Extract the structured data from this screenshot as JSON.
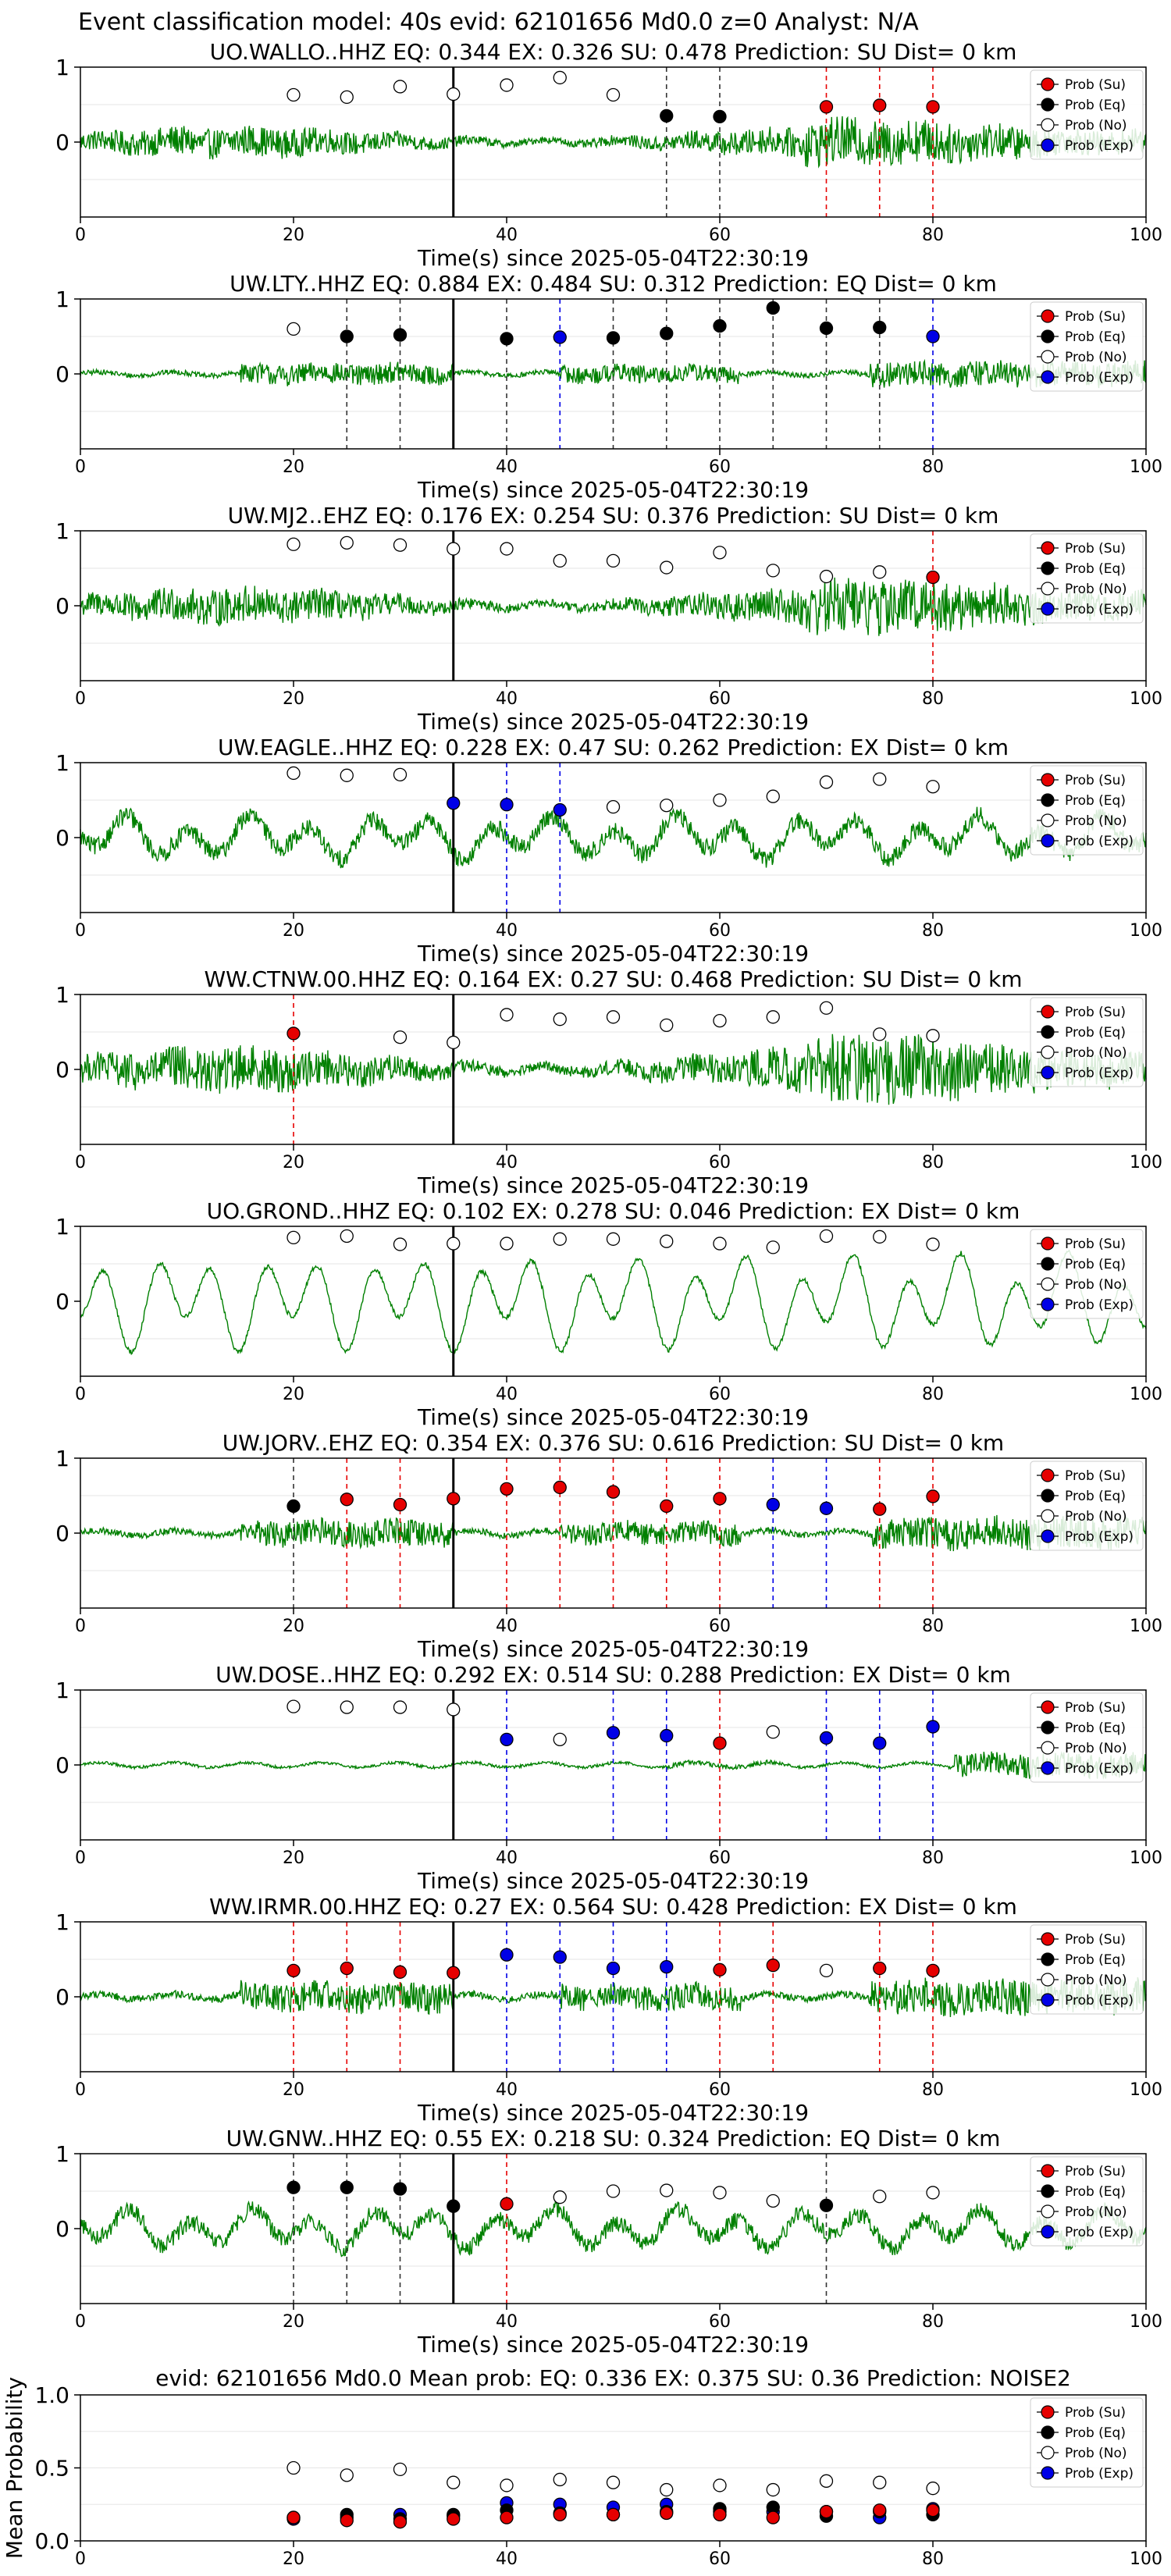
{
  "figure": {
    "suptitle": "Event classification model: 40s evid: 62101656 Md0.0 z=0 Analyst: N/A",
    "xlabel": "Time(s) since 2025-05-04T22:30:19",
    "legend": [
      "Prob (Su)",
      "Prob (Eq)",
      "Prob (No)",
      "Prob (Exp)"
    ]
  },
  "colors": {
    "su": "#e60000",
    "eq": "#000000",
    "no": "#ffffff",
    "exp": "#0000e6",
    "trace": "#008000",
    "pick": "#000000"
  },
  "chart_data": [
    {
      "type": "line",
      "title": "UO.WALLO..HHZ   EQ: 0.344  EX: 0.326  SU: 0.478   Prediction: SU    Dist= 0 km",
      "x_range": [
        0,
        100
      ],
      "y_ticks": [
        "1",
        "0"
      ],
      "x_ticks": [
        "0",
        "20",
        "40",
        "60",
        "80",
        "100"
      ],
      "pick_time": 35,
      "trace_style": "broadband",
      "amplitude": 0.38,
      "points": [
        [
          "no",
          20,
          0.63
        ],
        [
          "no",
          25,
          0.6
        ],
        [
          "no",
          30,
          0.74
        ],
        [
          "no",
          35,
          0.64
        ],
        [
          "no",
          40,
          0.76
        ],
        [
          "no",
          45,
          0.86
        ],
        [
          "no",
          50,
          0.63
        ],
        [
          "eq",
          55,
          0.35
        ],
        [
          "eq",
          60,
          0.34
        ],
        [
          "su",
          70,
          0.47
        ],
        [
          "su",
          75,
          0.49
        ],
        [
          "su",
          80,
          0.47
        ]
      ],
      "vlines": [
        [
          "eq",
          55
        ],
        [
          "eq",
          60
        ],
        [
          "su",
          70
        ],
        [
          "su",
          75
        ],
        [
          "su",
          80
        ]
      ]
    },
    {
      "type": "line",
      "title": "UW.LTY..HHZ   EQ: 0.884  EX: 0.484  SU: 0.312   Prediction: EQ    Dist= 0 km",
      "x_range": [
        0,
        100
      ],
      "y_ticks": [
        "1",
        "0"
      ],
      "x_ticks": [
        "0",
        "20",
        "40",
        "60",
        "80",
        "100"
      ],
      "pick_time": 35,
      "trace_style": "quiet-event",
      "amplitude": 0.32,
      "points": [
        [
          "no",
          20,
          0.6
        ],
        [
          "eq",
          25,
          0.5
        ],
        [
          "eq",
          30,
          0.52
        ],
        [
          "eq",
          40,
          0.47
        ],
        [
          "exp",
          45,
          0.49
        ],
        [
          "eq",
          50,
          0.48
        ],
        [
          "eq",
          55,
          0.54
        ],
        [
          "eq",
          60,
          0.64
        ],
        [
          "eq",
          65,
          0.88
        ],
        [
          "eq",
          70,
          0.61
        ],
        [
          "eq",
          75,
          0.62
        ],
        [
          "exp",
          80,
          0.5
        ]
      ],
      "vlines": [
        [
          "eq",
          25
        ],
        [
          "eq",
          30
        ],
        [
          "eq",
          40
        ],
        [
          "exp",
          45
        ],
        [
          "eq",
          50
        ],
        [
          "eq",
          55
        ],
        [
          "eq",
          60
        ],
        [
          "eq",
          65
        ],
        [
          "eq",
          70
        ],
        [
          "eq",
          75
        ],
        [
          "exp",
          80
        ]
      ]
    },
    {
      "type": "line",
      "title": "UW.MJ2..EHZ   EQ: 0.176  EX: 0.254  SU: 0.376   Prediction: SU    Dist= 0 km",
      "x_range": [
        0,
        100
      ],
      "y_ticks": [
        "1",
        "0"
      ],
      "x_ticks": [
        "0",
        "20",
        "40",
        "60",
        "80",
        "100"
      ],
      "pick_time": 35,
      "trace_style": "broadband",
      "amplitude": 0.45,
      "points": [
        [
          "no",
          20,
          0.82
        ],
        [
          "no",
          25,
          0.84
        ],
        [
          "no",
          30,
          0.81
        ],
        [
          "no",
          35,
          0.76
        ],
        [
          "no",
          40,
          0.76
        ],
        [
          "no",
          45,
          0.6
        ],
        [
          "no",
          50,
          0.6
        ],
        [
          "no",
          55,
          0.51
        ],
        [
          "no",
          60,
          0.71
        ],
        [
          "no",
          65,
          0.47
        ],
        [
          "no",
          70,
          0.39
        ],
        [
          "no",
          75,
          0.45
        ],
        [
          "su",
          80,
          0.38
        ]
      ],
      "vlines": [
        [
          "su",
          80
        ]
      ]
    },
    {
      "type": "line",
      "title": "UW.EAGLE..HHZ   EQ: 0.228  EX: 0.47  SU: 0.262   Prediction: EX    Dist= 0 km",
      "x_range": [
        0,
        100
      ],
      "y_ticks": [
        "1",
        "0"
      ],
      "x_ticks": [
        "0",
        "20",
        "40",
        "60",
        "80",
        "100"
      ],
      "pick_time": 35,
      "trace_style": "lowfreq-noisy",
      "amplitude": 0.55,
      "points": [
        [
          "no",
          20,
          0.86
        ],
        [
          "no",
          25,
          0.83
        ],
        [
          "no",
          30,
          0.84
        ],
        [
          "exp",
          35,
          0.46
        ],
        [
          "exp",
          40,
          0.44
        ],
        [
          "exp",
          45,
          0.37
        ],
        [
          "no",
          50,
          0.41
        ],
        [
          "no",
          55,
          0.43
        ],
        [
          "no",
          60,
          0.5
        ],
        [
          "no",
          65,
          0.55
        ],
        [
          "no",
          70,
          0.74
        ],
        [
          "no",
          75,
          0.78
        ],
        [
          "no",
          80,
          0.68
        ]
      ],
      "vlines": [
        [
          "exp",
          40
        ],
        [
          "exp",
          45
        ]
      ]
    },
    {
      "type": "line",
      "title": "WW.CTNW.00.HHZ   EQ: 0.164  EX: 0.27  SU: 0.468   Prediction: SU    Dist= 0 km",
      "x_range": [
        0,
        100
      ],
      "y_ticks": [
        "1",
        "0"
      ],
      "x_ticks": [
        "0",
        "20",
        "40",
        "60",
        "80",
        "100"
      ],
      "pick_time": 35,
      "trace_style": "broadband",
      "amplitude": 0.55,
      "points": [
        [
          "su",
          20,
          0.48
        ],
        [
          "no",
          30,
          0.43
        ],
        [
          "no",
          35,
          0.36
        ],
        [
          "no",
          40,
          0.73
        ],
        [
          "no",
          45,
          0.67
        ],
        [
          "no",
          50,
          0.7
        ],
        [
          "no",
          55,
          0.59
        ],
        [
          "no",
          60,
          0.65
        ],
        [
          "no",
          65,
          0.7
        ],
        [
          "no",
          70,
          0.82
        ],
        [
          "no",
          75,
          0.47
        ],
        [
          "no",
          80,
          0.45
        ]
      ],
      "vlines": [
        [
          "su",
          20
        ]
      ]
    },
    {
      "type": "line",
      "title": "UO.GROND..HHZ   EQ: 0.102  EX: 0.278  SU: 0.046   Prediction: EX    Dist= 0 km",
      "x_range": [
        0,
        100
      ],
      "y_ticks": [
        "1",
        "0"
      ],
      "x_ticks": [
        "0",
        "20",
        "40",
        "60",
        "80",
        "100"
      ],
      "pick_time": 35,
      "trace_style": "lowfreq",
      "amplitude": 0.8,
      "points": [
        [
          "no",
          20,
          0.85
        ],
        [
          "no",
          25,
          0.87
        ],
        [
          "no",
          30,
          0.76
        ],
        [
          "no",
          35,
          0.77
        ],
        [
          "no",
          40,
          0.77
        ],
        [
          "no",
          45,
          0.83
        ],
        [
          "no",
          50,
          0.83
        ],
        [
          "no",
          55,
          0.8
        ],
        [
          "no",
          60,
          0.77
        ],
        [
          "no",
          65,
          0.72
        ],
        [
          "no",
          70,
          0.87
        ],
        [
          "no",
          75,
          0.86
        ],
        [
          "no",
          80,
          0.76
        ]
      ],
      "vlines": []
    },
    {
      "type": "line",
      "title": "UW.JORV..EHZ   EQ: 0.354  EX: 0.376  SU: 0.616   Prediction: SU    Dist= 0 km",
      "x_range": [
        0,
        100
      ],
      "y_ticks": [
        "1",
        "0"
      ],
      "x_ticks": [
        "0",
        "20",
        "40",
        "60",
        "80",
        "100"
      ],
      "pick_time": 35,
      "trace_style": "quiet-event",
      "amplitude": 0.4,
      "points": [
        [
          "eq",
          20,
          0.36
        ],
        [
          "su",
          25,
          0.45
        ],
        [
          "su",
          30,
          0.38
        ],
        [
          "su",
          35,
          0.46
        ],
        [
          "su",
          40,
          0.59
        ],
        [
          "su",
          45,
          0.61
        ],
        [
          "su",
          50,
          0.55
        ],
        [
          "su",
          55,
          0.36
        ],
        [
          "su",
          60,
          0.46
        ],
        [
          "exp",
          65,
          0.38
        ],
        [
          "exp",
          70,
          0.33
        ],
        [
          "su",
          75,
          0.32
        ],
        [
          "su",
          80,
          0.49
        ]
      ],
      "vlines": [
        [
          "eq",
          20
        ],
        [
          "su",
          25
        ],
        [
          "su",
          30
        ],
        [
          "su",
          40
        ],
        [
          "su",
          45
        ],
        [
          "su",
          50
        ],
        [
          "su",
          55
        ],
        [
          "su",
          60
        ],
        [
          "exp",
          65
        ],
        [
          "exp",
          70
        ],
        [
          "su",
          75
        ],
        [
          "su",
          80
        ]
      ]
    },
    {
      "type": "line",
      "title": "UW.DOSE..HHZ   EQ: 0.292  EX: 0.514  SU: 0.288   Prediction: EX    Dist= 0 km",
      "x_range": [
        0,
        100
      ],
      "y_ticks": [
        "1",
        "0"
      ],
      "x_ticks": [
        "0",
        "20",
        "40",
        "60",
        "80",
        "100"
      ],
      "pick_time": 35,
      "trace_style": "very-quiet",
      "amplitude": 0.4,
      "points": [
        [
          "no",
          20,
          0.78
        ],
        [
          "no",
          25,
          0.77
        ],
        [
          "no",
          30,
          0.77
        ],
        [
          "no",
          35,
          0.74
        ],
        [
          "exp",
          40,
          0.34
        ],
        [
          "no",
          45,
          0.34
        ],
        [
          "exp",
          50,
          0.43
        ],
        [
          "exp",
          55,
          0.39
        ],
        [
          "su",
          60,
          0.29
        ],
        [
          "no",
          65,
          0.44
        ],
        [
          "exp",
          70,
          0.36
        ],
        [
          "exp",
          75,
          0.29
        ],
        [
          "exp",
          80,
          0.51
        ]
      ],
      "vlines": [
        [
          "exp",
          40
        ],
        [
          "exp",
          50
        ],
        [
          "exp",
          55
        ],
        [
          "su",
          60
        ],
        [
          "exp",
          70
        ],
        [
          "exp",
          75
        ],
        [
          "exp",
          80
        ]
      ]
    },
    {
      "type": "line",
      "title": "WW.IRMR.00.HHZ   EQ: 0.27  EX: 0.564  SU: 0.428   Prediction: EX    Dist= 0 km",
      "x_range": [
        0,
        100
      ],
      "y_ticks": [
        "1",
        "0"
      ],
      "x_ticks": [
        "0",
        "20",
        "40",
        "60",
        "80",
        "100"
      ],
      "pick_time": 35,
      "trace_style": "quiet-event",
      "amplitude": 0.45,
      "points": [
        [
          "su",
          20,
          0.35
        ],
        [
          "su",
          25,
          0.38
        ],
        [
          "su",
          30,
          0.33
        ],
        [
          "su",
          35,
          0.32
        ],
        [
          "exp",
          40,
          0.56
        ],
        [
          "exp",
          45,
          0.53
        ],
        [
          "exp",
          50,
          0.38
        ],
        [
          "exp",
          55,
          0.4
        ],
        [
          "su",
          60,
          0.36
        ],
        [
          "su",
          65,
          0.42
        ],
        [
          "no",
          70,
          0.35
        ],
        [
          "su",
          75,
          0.38
        ],
        [
          "su",
          80,
          0.35
        ]
      ],
      "vlines": [
        [
          "su",
          20
        ],
        [
          "su",
          25
        ],
        [
          "su",
          30
        ],
        [
          "exp",
          40
        ],
        [
          "exp",
          45
        ],
        [
          "exp",
          50
        ],
        [
          "exp",
          55
        ],
        [
          "su",
          60
        ],
        [
          "su",
          65
        ],
        [
          "su",
          75
        ],
        [
          "su",
          80
        ]
      ]
    },
    {
      "type": "line",
      "title": "UW.GNW..HHZ   EQ: 0.55  EX: 0.218  SU: 0.324   Prediction: EQ    Dist= 0 km",
      "x_range": [
        0,
        100
      ],
      "y_ticks": [
        "1",
        "0"
      ],
      "x_ticks": [
        "0",
        "20",
        "40",
        "60",
        "80",
        "100"
      ],
      "pick_time": 35,
      "trace_style": "lowfreq-noisy",
      "amplitude": 0.5,
      "points": [
        [
          "eq",
          20,
          0.55
        ],
        [
          "eq",
          25,
          0.55
        ],
        [
          "eq",
          30,
          0.53
        ],
        [
          "eq",
          35,
          0.3
        ],
        [
          "su",
          40,
          0.33
        ],
        [
          "no",
          45,
          0.42
        ],
        [
          "no",
          50,
          0.5
        ],
        [
          "no",
          55,
          0.51
        ],
        [
          "no",
          60,
          0.48
        ],
        [
          "no",
          65,
          0.37
        ],
        [
          "eq",
          70,
          0.31
        ],
        [
          "no",
          75,
          0.43
        ],
        [
          "no",
          80,
          0.48
        ]
      ],
      "vlines": [
        [
          "eq",
          20
        ],
        [
          "eq",
          25
        ],
        [
          "eq",
          30
        ],
        [
          "su",
          40
        ],
        [
          "eq",
          70
        ]
      ]
    }
  ],
  "summary": {
    "type": "scatter",
    "title": "evid: 62101656  Md0.0   Mean prob:   EQ: 0.336  EX: 0.375  SU: 0.36   Prediction: NOISE2",
    "ylabel": "Mean Probability",
    "x_range": [
      0,
      100
    ],
    "y_range": [
      0,
      1
    ],
    "x_ticks": [
      "0",
      "20",
      "40",
      "60",
      "80",
      "100"
    ],
    "y_ticks": [
      "0.0",
      "0.5",
      "1.0"
    ],
    "x": [
      20,
      25,
      30,
      35,
      40,
      45,
      50,
      55,
      60,
      65,
      70,
      75,
      80
    ],
    "series": [
      {
        "key": "no",
        "values": [
          0.5,
          0.45,
          0.49,
          0.4,
          0.38,
          0.42,
          0.4,
          0.35,
          0.38,
          0.35,
          0.41,
          0.4,
          0.36
        ]
      },
      {
        "key": "exp",
        "values": [
          0.15,
          0.16,
          0.18,
          0.17,
          0.26,
          0.25,
          0.23,
          0.25,
          0.2,
          0.2,
          0.2,
          0.16,
          0.22
        ]
      },
      {
        "key": "eq",
        "values": [
          0.16,
          0.18,
          0.15,
          0.18,
          0.21,
          0.19,
          0.18,
          0.2,
          0.22,
          0.23,
          0.17,
          0.2,
          0.18
        ]
      },
      {
        "key": "su",
        "values": [
          0.16,
          0.14,
          0.13,
          0.15,
          0.16,
          0.18,
          0.18,
          0.19,
          0.18,
          0.16,
          0.2,
          0.21,
          0.21
        ]
      }
    ]
  }
}
